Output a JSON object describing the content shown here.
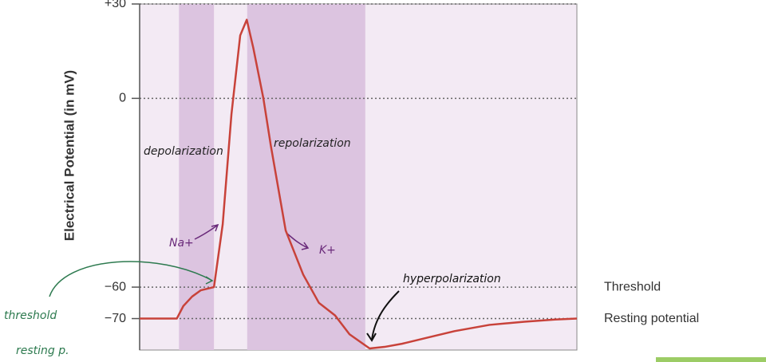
{
  "chart_data": {
    "type": "line",
    "y_label": "Electrical Potential (in mV)",
    "x": [
      0,
      8.5,
      10,
      12,
      14,
      17,
      19,
      21,
      23,
      24.5,
      26,
      28.3,
      30,
      33.4,
      37.4,
      41,
      44.7,
      48,
      52.6,
      56,
      60,
      66,
      72,
      80,
      88,
      95,
      100
    ],
    "series": [
      {
        "color": "#c8423a",
        "values": [
          -70,
          -70,
          -66,
          -63,
          -61,
          -60,
          -40,
          -5,
          20,
          25,
          16,
          0,
          -15,
          -42,
          -56,
          -65,
          -69,
          -75,
          -79.5,
          -79,
          -78,
          -76,
          -74,
          -72,
          -71,
          -70.3,
          -70
        ]
      }
    ],
    "xlim": [
      0,
      100
    ],
    "ylim": [
      -80,
      30
    ],
    "yticks": [
      {
        "value": 30,
        "label": "+30"
      },
      0,
      {
        "value": -60,
        "label": "−60"
      },
      {
        "value": -70,
        "label": "−70"
      }
    ],
    "grid": true,
    "bands": [
      [
        9,
        17
      ],
      [
        24.6,
        51.6
      ]
    ],
    "reference_labels": [
      {
        "value": -60,
        "label": "Threshold"
      },
      {
        "value": -70,
        "label": "Resting potential"
      }
    ],
    "annotations": [
      "depolarization",
      "repolarization",
      "Na+",
      "K+",
      "hyperpolarization",
      "threshold",
      "resting p."
    ]
  }
}
